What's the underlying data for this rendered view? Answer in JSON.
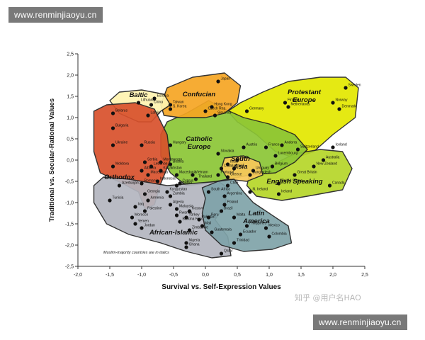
{
  "watermarks": {
    "top": "www.renminjiaoyu.cn",
    "bottom": "www.renminjiaoyu.cn",
    "zhihu": "知乎 @用户名HAO"
  },
  "chart_data": {
    "type": "scatter",
    "xlabel": "Survival vs. Self-Expression Values",
    "ylabel": "Traditional vs. Secular-Rational Values",
    "xlim": [
      -2.0,
      2.5
    ],
    "ylim": [
      -2.5,
      2.5
    ],
    "xticks": [
      "-2,0",
      "-1,5",
      "-1,0",
      "-0,5",
      "0,0",
      "0,5",
      "1,0",
      "1,5",
      "2,0",
      "2,5"
    ],
    "yticks": [
      "2,5",
      "2,0",
      "1,5",
      "1,0",
      "0,5",
      "0,0",
      "-0,5",
      "-1,0",
      "-1,5",
      "-2,0",
      "-2,5"
    ],
    "footnote": "Muslim-majority countries are in italics",
    "grid": false,
    "regions": [
      {
        "name": "Protestant Europe",
        "color": "#e3e800",
        "label": [
          "Protestant",
          "Europe"
        ]
      },
      {
        "name": "English Speaking",
        "color": "#b6d629",
        "label": [
          "English Speaking"
        ]
      },
      {
        "name": "Catholic Europe",
        "color": "#8cc636",
        "label": [
          "Catholic",
          "Europe"
        ]
      },
      {
        "name": "Confucian",
        "color": "#f6a623",
        "label": [
          "Confucian"
        ]
      },
      {
        "name": "Baltic",
        "color": "#fff4b0",
        "label": [
          "Baltic"
        ]
      },
      {
        "name": "Orthodox",
        "color": "#d8512c",
        "label": [
          "Orthodox"
        ]
      },
      {
        "name": "South Asia",
        "color": "#f8c85a",
        "label": [
          "South",
          "Asia"
        ]
      },
      {
        "name": "African-Islamic",
        "color": "#b4b6c0",
        "label": [
          "African-Islamic"
        ]
      },
      {
        "name": "Latin America",
        "color": "#7fa3a9",
        "label": [
          "Latin",
          "America"
        ]
      }
    ],
    "points": [
      {
        "label": "Japan",
        "x": 0.2,
        "y": 1.85
      },
      {
        "label": "Sweden",
        "x": 2.2,
        "y": 1.7
      },
      {
        "label": "Norway",
        "x": 2.0,
        "y": 1.35
      },
      {
        "label": "Denmark",
        "x": 2.1,
        "y": 1.2
      },
      {
        "label": "Finland",
        "x": 1.25,
        "y": 1.35
      },
      {
        "label": "Netherlands",
        "x": 1.3,
        "y": 1.25
      },
      {
        "label": "Germany",
        "x": 0.65,
        "y": 1.15
      },
      {
        "label": "Estonia",
        "x": -0.8,
        "y": 1.45
      },
      {
        "label": "Lithuania",
        "x": -1.05,
        "y": 1.35
      },
      {
        "label": "China",
        "x": -0.85,
        "y": 1.3
      },
      {
        "label": "Taiwan",
        "x": -0.55,
        "y": 1.3
      },
      {
        "label": "S. Korea",
        "x": -0.55,
        "y": 1.2
      },
      {
        "label": "Latvia",
        "x": -0.9,
        "y": 1.05
      },
      {
        "label": "Hong Kong",
        "x": 0.1,
        "y": 1.25
      },
      {
        "label": "Czech Rep.",
        "x": 0.0,
        "y": 1.15
      },
      {
        "label": "Slovenia",
        "x": 0.15,
        "y": 1.05
      },
      {
        "label": "Belarus",
        "x": -1.45,
        "y": 1.1
      },
      {
        "label": "Bulgaria",
        "x": -1.45,
        "y": 0.75
      },
      {
        "label": "Ukraine",
        "x": -1.45,
        "y": 0.35
      },
      {
        "label": "Russia",
        "x": -1.0,
        "y": 0.35
      },
      {
        "label": "Moldova",
        "x": -1.45,
        "y": -0.15
      },
      {
        "label": "Serbia",
        "x": -0.95,
        "y": -0.05
      },
      {
        "label": "Albania",
        "x": -1.0,
        "y": -0.25
      },
      {
        "label": "Macedonia",
        "x": -0.9,
        "y": -0.35
      },
      {
        "label": "Montenegro",
        "x": -0.7,
        "y": -0.05
      },
      {
        "label": "Romania",
        "x": -1.0,
        "y": -0.55
      },
      {
        "label": "Hungary",
        "x": -0.55,
        "y": 0.35
      },
      {
        "label": "Georgia",
        "x": -0.95,
        "y": -0.8
      },
      {
        "label": "Armenia",
        "x": -0.9,
        "y": -0.95
      },
      {
        "label": "Bosnia",
        "x": -0.55,
        "y": -0.1
      },
      {
        "label": "Lebanon",
        "x": -0.85,
        "y": -0.15
      },
      {
        "label": "Kazakhstan",
        "x": -0.7,
        "y": -0.25
      },
      {
        "label": "Indonesia",
        "x": -0.75,
        "y": -0.5
      },
      {
        "label": "Kyrgyzstan",
        "x": -0.6,
        "y": -0.75
      },
      {
        "label": "Zambia",
        "x": -0.55,
        "y": -0.85
      },
      {
        "label": "Ethiopia",
        "x": -0.45,
        "y": -0.6
      },
      {
        "label": "Algeria",
        "x": -0.55,
        "y": -1.05
      },
      {
        "label": "Azerbaijan",
        "x": -1.35,
        "y": -0.6
      },
      {
        "label": "Tunisia",
        "x": -1.5,
        "y": -0.95
      },
      {
        "label": "Iraq",
        "x": -1.1,
        "y": -1.1
      },
      {
        "label": "Palestine",
        "x": -0.95,
        "y": -1.2
      },
      {
        "label": "Morocco",
        "x": -1.15,
        "y": -1.35
      },
      {
        "label": "Yemen",
        "x": -1.1,
        "y": -1.5
      },
      {
        "label": "Jordan",
        "x": -1.0,
        "y": -1.6
      },
      {
        "label": "Malaysia",
        "x": -0.45,
        "y": -1.15
      },
      {
        "label": "Rwanda",
        "x": -0.45,
        "y": -1.3
      },
      {
        "label": "Turkey",
        "x": -0.3,
        "y": -1.35
      },
      {
        "label": "Burkina Faso",
        "x": -0.4,
        "y": -1.45
      },
      {
        "label": "Kosovo",
        "x": -0.25,
        "y": -1.2
      },
      {
        "label": "Pakistan",
        "x": -0.1,
        "y": -1.4
      },
      {
        "label": "Zimbabwe",
        "x": -0.25,
        "y": -1.65
      },
      {
        "label": "Mali",
        "x": -0.05,
        "y": -1.55
      },
      {
        "label": "Nigeria",
        "x": -0.3,
        "y": -1.95
      },
      {
        "label": "Ghana",
        "x": -0.3,
        "y": -2.05
      },
      {
        "label": "Qatar",
        "x": 0.25,
        "y": -2.2
      },
      {
        "label": "Macedonia",
        "x": -0.45,
        "y": -0.35
      },
      {
        "label": "Vietnam",
        "x": -0.2,
        "y": -0.35
      },
      {
        "label": "Thailand",
        "x": -0.15,
        "y": -0.45
      },
      {
        "label": "Cyprus",
        "x": -0.4,
        "y": -0.55
      },
      {
        "label": "Portugal",
        "x": 0.2,
        "y": -0.35
      },
      {
        "label": "Croatia",
        "x": 0.25,
        "y": -0.2
      },
      {
        "label": "Slovakia",
        "x": 0.2,
        "y": 0.15
      },
      {
        "label": "Austria",
        "x": 0.6,
        "y": 0.3
      },
      {
        "label": "France",
        "x": 0.95,
        "y": 0.3
      },
      {
        "label": "Spain",
        "x": 0.5,
        "y": 0.0
      },
      {
        "label": "Italy",
        "x": 0.45,
        "y": -0.2
      },
      {
        "label": "Greece",
        "x": 0.35,
        "y": -0.4
      },
      {
        "label": "Uruguay",
        "x": 0.75,
        "y": -0.25
      },
      {
        "label": "Andorra",
        "x": 1.2,
        "y": 0.35
      },
      {
        "label": "Switzerland",
        "x": 1.45,
        "y": 0.25
      },
      {
        "label": "Luxembourg",
        "x": 1.1,
        "y": 0.1
      },
      {
        "label": "Belgium",
        "x": 1.05,
        "y": -0.15
      },
      {
        "label": "Iceland",
        "x": 2.0,
        "y": 0.3
      },
      {
        "label": "Australia",
        "x": 1.85,
        "y": 0.0
      },
      {
        "label": "New Zealand",
        "x": 1.7,
        "y": -0.15
      },
      {
        "label": "Great Britain",
        "x": 1.4,
        "y": -0.35
      },
      {
        "label": "United States",
        "x": 1.15,
        "y": -0.55
      },
      {
        "label": "Canada",
        "x": 1.95,
        "y": -0.6
      },
      {
        "label": "Ireland",
        "x": 1.15,
        "y": -0.8
      },
      {
        "label": "N. Ireland",
        "x": 0.7,
        "y": -0.75
      },
      {
        "label": "India",
        "x": 0.35,
        "y": -0.1
      },
      {
        "label": "Bangladesh",
        "x": 0.7,
        "y": -0.35
      },
      {
        "label": "Chile",
        "x": 0.35,
        "y": -0.6
      },
      {
        "label": "Argentina",
        "x": 0.3,
        "y": -0.85
      },
      {
        "label": "South Africa",
        "x": 0.05,
        "y": -0.75
      },
      {
        "label": "Poland",
        "x": 0.3,
        "y": -1.05
      },
      {
        "label": "Brazil",
        "x": 0.25,
        "y": -1.2
      },
      {
        "label": "Peru",
        "x": 0.05,
        "y": -1.35
      },
      {
        "label": "Malta",
        "x": 0.45,
        "y": -1.35
      },
      {
        "label": "Philippines",
        "x": 0.65,
        "y": -1.55
      },
      {
        "label": "Guatemala",
        "x": 0.1,
        "y": -1.7
      },
      {
        "label": "Ecuador",
        "x": 0.55,
        "y": -1.75
      },
      {
        "label": "Trinidad",
        "x": 0.45,
        "y": -1.95
      },
      {
        "label": "Mexico",
        "x": 0.95,
        "y": -1.6
      },
      {
        "label": "Colombia",
        "x": 1.0,
        "y": -1.8
      }
    ]
  }
}
